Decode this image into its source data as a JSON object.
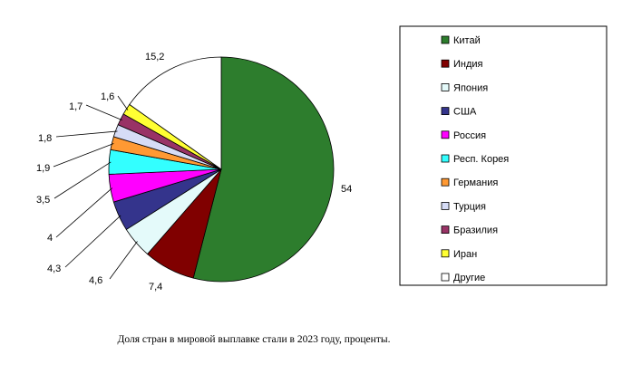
{
  "chart_data": {
    "type": "pie",
    "title": "Доля стран в мировой выплавке стали в 2023 году, проценты.",
    "legend_position": "right",
    "slices": [
      {
        "name": "Китай",
        "value": 54,
        "label": "54",
        "color": "#2d7d2d"
      },
      {
        "name": "Индия",
        "value": 7.4,
        "label": "7,4",
        "color": "#800000"
      },
      {
        "name": "Япония",
        "value": 4.6,
        "label": "4,6",
        "color": "#e4fafa"
      },
      {
        "name": "США",
        "value": 4.3,
        "label": "4,3",
        "color": "#34348c"
      },
      {
        "name": "Россия",
        "value": 4,
        "label": "4",
        "color": "#ff00ff"
      },
      {
        "name": "Респ. Корея",
        "value": 3.5,
        "label": "3,5",
        "color": "#33ffff"
      },
      {
        "name": "Германия",
        "value": 1.9,
        "label": "1,9",
        "color": "#ff9933"
      },
      {
        "name": "Турция",
        "value": 1.8,
        "label": "1,8",
        "color": "#d6dcf6"
      },
      {
        "name": "Бразилия",
        "value": 1.7,
        "label": "1,7",
        "color": "#993366"
      },
      {
        "name": "Иран",
        "value": 1.6,
        "label": "1,6",
        "color": "#ffff33"
      },
      {
        "name": "Другие",
        "value": 15.2,
        "label": "15,2",
        "color": "#ffffff"
      }
    ]
  }
}
